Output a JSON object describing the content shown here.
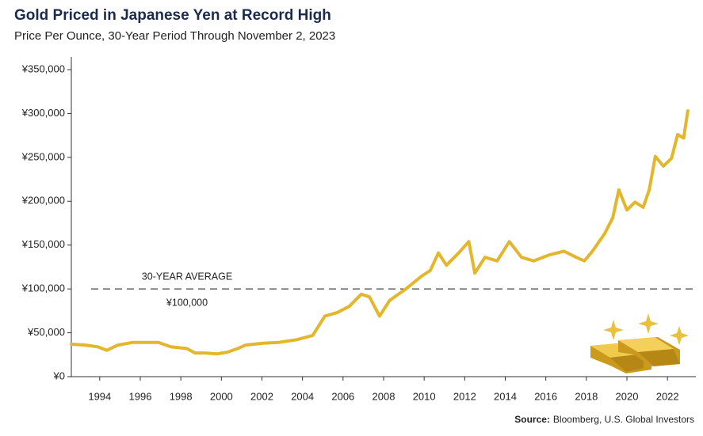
{
  "chart_data": {
    "type": "line",
    "title": "Gold Priced in Japanese Yen at Record High",
    "subtitle": "Price Per Ounce, 30-Year Period Through November 2, 2023",
    "source_label": "Source:",
    "source_text": "Bloomberg, U.S. Global Investors",
    "color": "#e3b62c",
    "x": [
      1992.6,
      1993.3,
      1993.9,
      1994.35,
      1994.9,
      1995.6,
      1996.3,
      1996.9,
      1997.5,
      1998.3,
      1998.7,
      1999.2,
      1999.8,
      2000.3,
      2000.8,
      2001.2,
      2002.0,
      2002.8,
      2003.7,
      2004.5,
      2005.1,
      2005.7,
      2006.3,
      2006.9,
      2007.3,
      2007.8,
      2008.3,
      2009.1,
      2009.9,
      2010.3,
      2010.7,
      2011.1,
      2011.7,
      2012.2,
      2012.5,
      2013.0,
      2013.6,
      2014.2,
      2014.8,
      2015.4,
      2016.2,
      2016.9,
      2017.5,
      2017.9,
      2018.3,
      2018.9,
      2019.3,
      2019.6,
      2020.0,
      2020.4,
      2020.8,
      2021.1,
      2021.4,
      2021.8,
      2022.2,
      2022.5,
      2022.8,
      2023.0
    ],
    "values": [
      37000,
      36000,
      34000,
      30000,
      36000,
      39000,
      39000,
      39000,
      34000,
      32000,
      27000,
      27000,
      26000,
      28000,
      32000,
      36000,
      38000,
      39000,
      42000,
      47000,
      69000,
      73000,
      80000,
      94000,
      91000,
      69000,
      87000,
      100000,
      115000,
      121000,
      141000,
      127000,
      141000,
      154000,
      118000,
      136000,
      132000,
      154000,
      136000,
      132000,
      139000,
      143000,
      136000,
      132000,
      143000,
      163000,
      181000,
      213000,
      190000,
      199000,
      193000,
      213000,
      251000,
      240000,
      249000,
      276000,
      272000,
      303000
    ],
    "xlim": [
      1992.6,
      2023.4
    ],
    "xticks": [
      1994,
      1996,
      1998,
      2000,
      2002,
      2004,
      2006,
      2008,
      2010,
      2012,
      2014,
      2016,
      2018,
      2020,
      2022
    ],
    "ylim": [
      0,
      350000
    ],
    "yticks": [
      {
        "value": 0,
        "label": "¥0"
      },
      {
        "value": 50000,
        "label": "¥50,000"
      },
      {
        "value": 100000,
        "label": "¥100,000"
      },
      {
        "value": 150000,
        "label": "¥150,000"
      },
      {
        "value": 200000,
        "label": "¥200,000"
      },
      {
        "value": 250000,
        "label": "¥250,000"
      },
      {
        "value": 300000,
        "label": "¥300,000"
      },
      {
        "value": 350000,
        "label": "¥350,000"
      }
    ],
    "reference_line": {
      "value": 100000,
      "label": "30-YEAR AVERAGE",
      "value_label": "¥100,000"
    }
  }
}
